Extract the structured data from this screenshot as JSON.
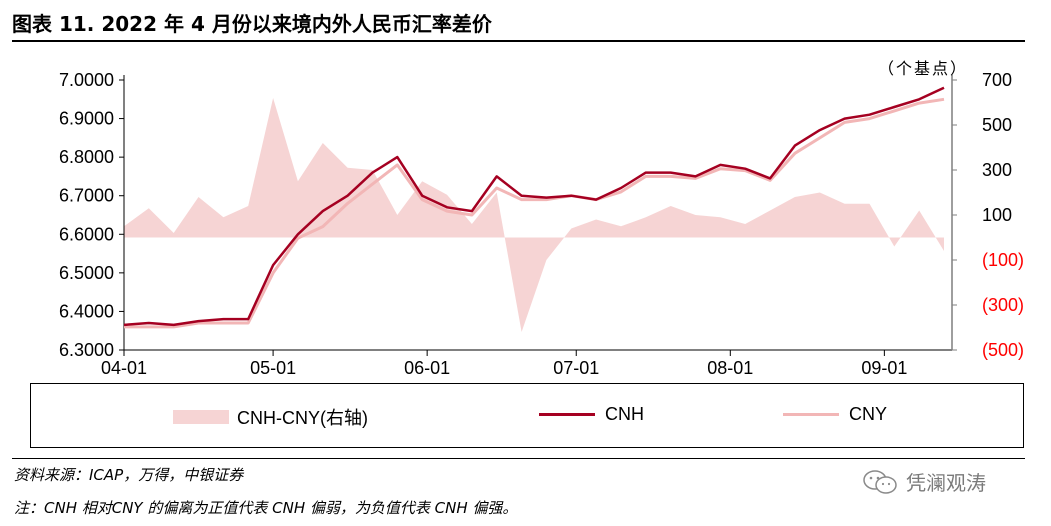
{
  "title": "图表 11. 2022 年 4 月份以来境内外人民币汇率差价",
  "unit_label": "（个基点）",
  "legend": {
    "spread": "CNH-CNY(右轴)",
    "cnh": "CNH",
    "cny": "CNY"
  },
  "source": "资料来源：ICAP，万得，中银证券",
  "note": "注：CNH 相对CNY 的偏离为正值代表 CNH 偏弱，为负值代表 CNH 偏强。",
  "watermark": "凭澜观涛",
  "colors": {
    "cnh": "#a50021",
    "cny": "#f2b6b6",
    "spread": "#f6d4d4",
    "negative_axis": "#ff0000"
  },
  "chart_data": {
    "type": "line",
    "title": "",
    "x_tick_labels": [
      "04-01",
      "05-01",
      "06-01",
      "07-01",
      "08-01",
      "09-01"
    ],
    "x": [
      "04-01",
      "04-06",
      "04-11",
      "04-16",
      "04-21",
      "04-26",
      "05-01",
      "05-06",
      "05-11",
      "05-16",
      "05-21",
      "05-26",
      "05-31",
      "06-05",
      "06-10",
      "06-15",
      "06-20",
      "06-25",
      "06-30",
      "07-05",
      "07-10",
      "07-15",
      "07-20",
      "07-25",
      "07-30",
      "08-04",
      "08-09",
      "08-14",
      "08-19",
      "08-24",
      "08-29",
      "09-03",
      "09-08",
      "09-13"
    ],
    "left_axis": {
      "ylim": [
        6.3,
        7.0
      ],
      "ticks": [
        "6.3000",
        "6.4000",
        "6.5000",
        "6.6000",
        "6.7000",
        "6.8000",
        "6.9000",
        "7.0000"
      ]
    },
    "right_axis": {
      "ylim": [
        -500,
        700
      ],
      "ticks": [
        "(500)",
        "(300)",
        "(100)",
        "100",
        "300",
        "500",
        "700"
      ]
    },
    "series": [
      {
        "name": "CNH",
        "axis": "left",
        "values": [
          6.365,
          6.37,
          6.365,
          6.375,
          6.38,
          6.38,
          6.52,
          6.6,
          6.66,
          6.7,
          6.76,
          6.8,
          6.7,
          6.67,
          6.66,
          6.75,
          6.7,
          6.695,
          6.7,
          6.69,
          6.72,
          6.76,
          6.76,
          6.75,
          6.78,
          6.77,
          6.745,
          6.83,
          6.87,
          6.9,
          6.91,
          6.93,
          6.95,
          6.98
        ]
      },
      {
        "name": "CNY",
        "axis": "left",
        "values": [
          6.36,
          6.36,
          6.36,
          6.37,
          6.37,
          6.37,
          6.5,
          6.59,
          6.62,
          6.68,
          6.73,
          6.78,
          6.69,
          6.66,
          6.65,
          6.72,
          6.69,
          6.69,
          6.7,
          6.69,
          6.71,
          6.75,
          6.75,
          6.745,
          6.77,
          6.765,
          6.74,
          6.81,
          6.85,
          6.89,
          6.9,
          6.92,
          6.94,
          6.95
        ]
      },
      {
        "name": "CNH-CNY(右轴)",
        "axis": "right",
        "type": "area",
        "values": [
          50,
          130,
          20,
          180,
          90,
          140,
          620,
          250,
          420,
          310,
          300,
          100,
          250,
          190,
          60,
          200,
          -420,
          -100,
          40,
          80,
          50,
          90,
          140,
          100,
          90,
          60,
          120,
          180,
          200,
          150,
          150,
          -40,
          120,
          -60
        ]
      }
    ]
  }
}
